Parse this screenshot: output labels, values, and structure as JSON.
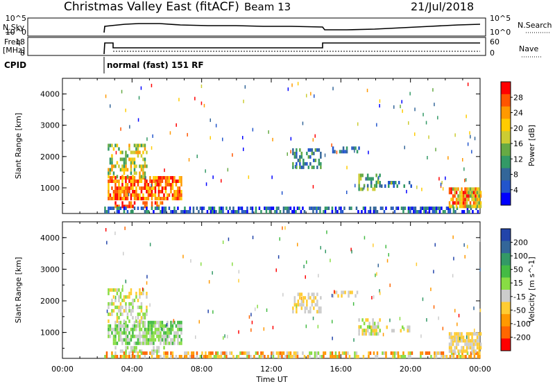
{
  "header": {
    "title": "Christmas Valley East (fitACF)",
    "beam": "Beam 13",
    "date": "21/Jul/2018"
  },
  "strips": {
    "nsky_label": "N.Sky",
    "nsky_ticks": [
      "10^5",
      "10^0"
    ],
    "nsearch_label": "N.Search",
    "nsearch_ticks": [
      "10^5",
      "10^0"
    ],
    "freq_label_1": "Freq.",
    "freq_label_2": "[MHz]",
    "freq_ticks": [
      "18",
      "8"
    ],
    "nave_label": "Nave",
    "nave_ticks": [
      "60",
      "0"
    ],
    "cpid_label": "CPID",
    "cpid_text": "normal (fast) 151 RF"
  },
  "chart_data": [
    {
      "type": "heatmap",
      "title": "",
      "xlabel": "",
      "ylabel": "Slant Range [km]",
      "y_ticks": [
        "4000",
        "3000",
        "2000",
        "1000"
      ],
      "y_values": [
        4000,
        3000,
        2000,
        1000
      ],
      "ylim": [
        180,
        4500
      ],
      "colorbar_label": "Power [dB]",
      "colorbar_ticks": [
        "28",
        "24",
        "20",
        "16",
        "12",
        "8",
        "4"
      ],
      "colorbar_colors": [
        "#ff0000",
        "#ff5500",
        "#ff9900",
        "#ffcc00",
        "#cccc33",
        "#66aa44",
        "#339966",
        "#336699",
        "#2255cc",
        "#0000ff"
      ]
    },
    {
      "type": "heatmap",
      "title": "",
      "xlabel": "Time UT",
      "ylabel": "Slant Range [km]",
      "y_ticks": [
        "4000",
        "3000",
        "2000",
        "1000"
      ],
      "y_values": [
        4000,
        3000,
        2000,
        1000
      ],
      "ylim": [
        180,
        4500
      ],
      "x_ticks": [
        "00:00",
        "04:00",
        "08:00",
        "12:00",
        "16:00",
        "20:00",
        "00:00"
      ],
      "xlim_hours": [
        0,
        24
      ],
      "colorbar_label": "Velocity [m s^-1]",
      "colorbar_ticks": [
        "200",
        "100",
        "50",
        "15",
        "-15",
        "-50",
        "-100",
        "-200"
      ],
      "colorbar_colors": [
        "#2244aa",
        "#336699",
        "#339966",
        "#44bb44",
        "#88dd44",
        "#cccccc",
        "#ffcc33",
        "#ff9900",
        "#ff6600",
        "#ff0000"
      ]
    }
  ]
}
